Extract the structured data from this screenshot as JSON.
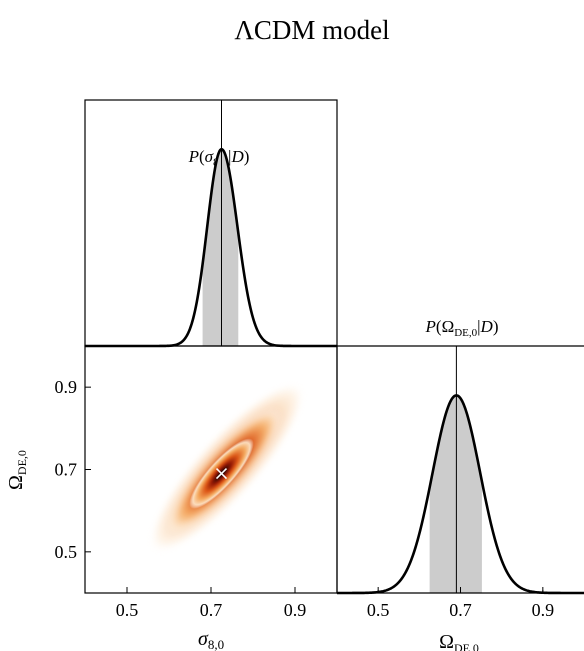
{
  "figure": {
    "title": "ΛCDM model"
  },
  "chart_data": [
    {
      "panel": "top-left",
      "type": "line",
      "title": "P(σ8,0|D)",
      "x_range": [
        0.4,
        1.0
      ],
      "y_range": [
        0,
        1.15
      ],
      "peak": 0.725,
      "credible_interval": [
        0.68,
        0.765
      ],
      "curve": {
        "mu": 0.725,
        "sigma_left": 0.034,
        "sigma_right": 0.038
      },
      "xticks": [],
      "yticks": []
    },
    {
      "panel": "bottom-left",
      "type": "heatmap",
      "xlabel": "σ8,0",
      "ylabel": "ΩDE,0",
      "x_range": [
        0.4,
        1.0
      ],
      "y_range": [
        0.4,
        1.0
      ],
      "xticks": [
        "0.5",
        "0.7",
        "0.9"
      ],
      "yticks": [
        "0.5",
        "0.7",
        "0.9"
      ],
      "best_fit": {
        "x": 0.725,
        "y": 0.69
      },
      "colormap": [
        "#ffffff",
        "#f6c98a",
        "#ec7a2a",
        "#c22a0a",
        "#6a0f05",
        "#1a0000"
      ]
    },
    {
      "panel": "bottom-right",
      "type": "line",
      "title": "P(ΩDE,0|D)",
      "xlabel": "ΩDE,0",
      "x_range": [
        0.4,
        1.0
      ],
      "y_range": [
        0,
        1.15
      ],
      "peak": 0.69,
      "credible_interval": [
        0.625,
        0.752
      ],
      "curve": {
        "mu": 0.69,
        "sigma_left": 0.058,
        "sigma_right": 0.058
      },
      "xticks": [
        "0.5",
        "0.7",
        "0.9"
      ],
      "yticks": []
    }
  ]
}
